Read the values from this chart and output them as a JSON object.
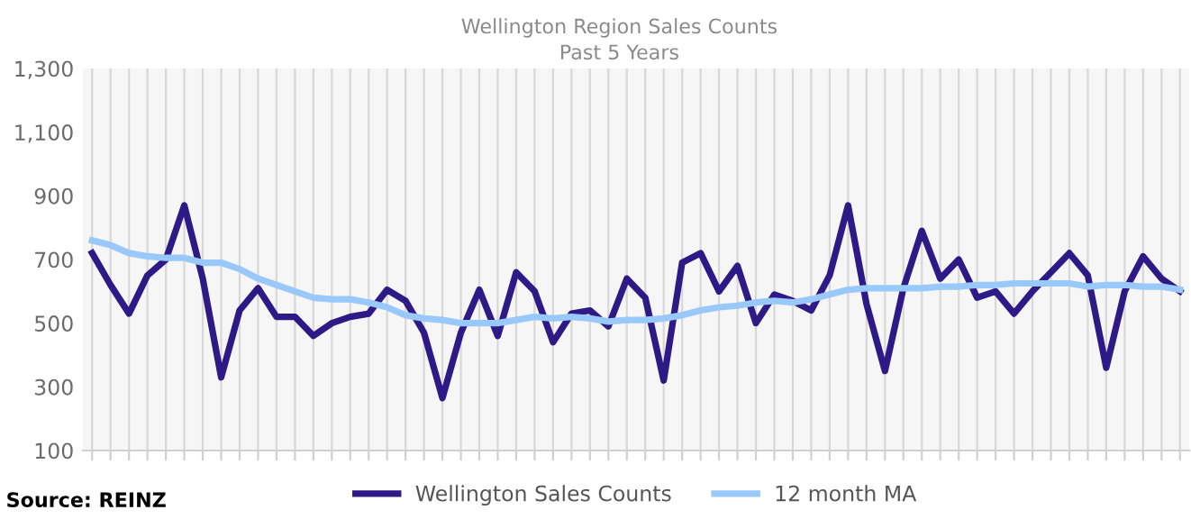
{
  "chart_data": {
    "type": "line",
    "title": "Wellington Region Sales Counts",
    "subtitle": "Past 5 Years",
    "categories": [
      null,
      null,
      null,
      null,
      null,
      null,
      null,
      null,
      null,
      null,
      null,
      null,
      null,
      null,
      null,
      null,
      null,
      null,
      null,
      null,
      null,
      null,
      null,
      null,
      null,
      null,
      null,
      null,
      null,
      null,
      null,
      null,
      null,
      null,
      null,
      null,
      null,
      null,
      null,
      null,
      null,
      null,
      null,
      null,
      null,
      null,
      null,
      null,
      null,
      null,
      null,
      null,
      null,
      null,
      null,
      null,
      null,
      null,
      null,
      null
    ],
    "series": [
      {
        "name": "Wellington Sales Counts",
        "color": "#2e1a87",
        "values": [
          720,
          620,
          530,
          650,
          700,
          870,
          640,
          330,
          540,
          610,
          520,
          520,
          460,
          500,
          520,
          530,
          605,
          570,
          470,
          265,
          470,
          605,
          460,
          660,
          600,
          440,
          530,
          540,
          490,
          640,
          580,
          320,
          690,
          720,
          600,
          680,
          500,
          590,
          570,
          540,
          650,
          870,
          560,
          350,
          610,
          790,
          640,
          700,
          580,
          600,
          530,
          600,
          660,
          720,
          650,
          360,
          600,
          710,
          640,
          600
        ]
      },
      {
        "name": "12 month MA",
        "color": "#99c8fb",
        "values": [
          760,
          745,
          720,
          710,
          705,
          705,
          690,
          690,
          670,
          640,
          620,
          600,
          580,
          575,
          575,
          565,
          550,
          525,
          515,
          510,
          500,
          500,
          500,
          510,
          520,
          515,
          520,
          515,
          505,
          510,
          510,
          515,
          525,
          540,
          550,
          555,
          565,
          570,
          565,
          575,
          590,
          605,
          610,
          610,
          610,
          610,
          615,
          615,
          620,
          620,
          625,
          625,
          625,
          625,
          615,
          620,
          620,
          615,
          615,
          605
        ]
      }
    ],
    "ylim": [
      100,
      1300
    ],
    "yticks": [
      100,
      {
        "value": 300,
        "label": "300"
      },
      500,
      700,
      900,
      {
        "value": 1100,
        "label": "1,100"
      },
      {
        "value": 1300,
        "label": "1,300"
      }
    ],
    "grid": "x",
    "legend": "bottom",
    "marker": "none",
    "line_style": "solid",
    "annotations": [
      "Source: REINZ"
    ]
  }
}
